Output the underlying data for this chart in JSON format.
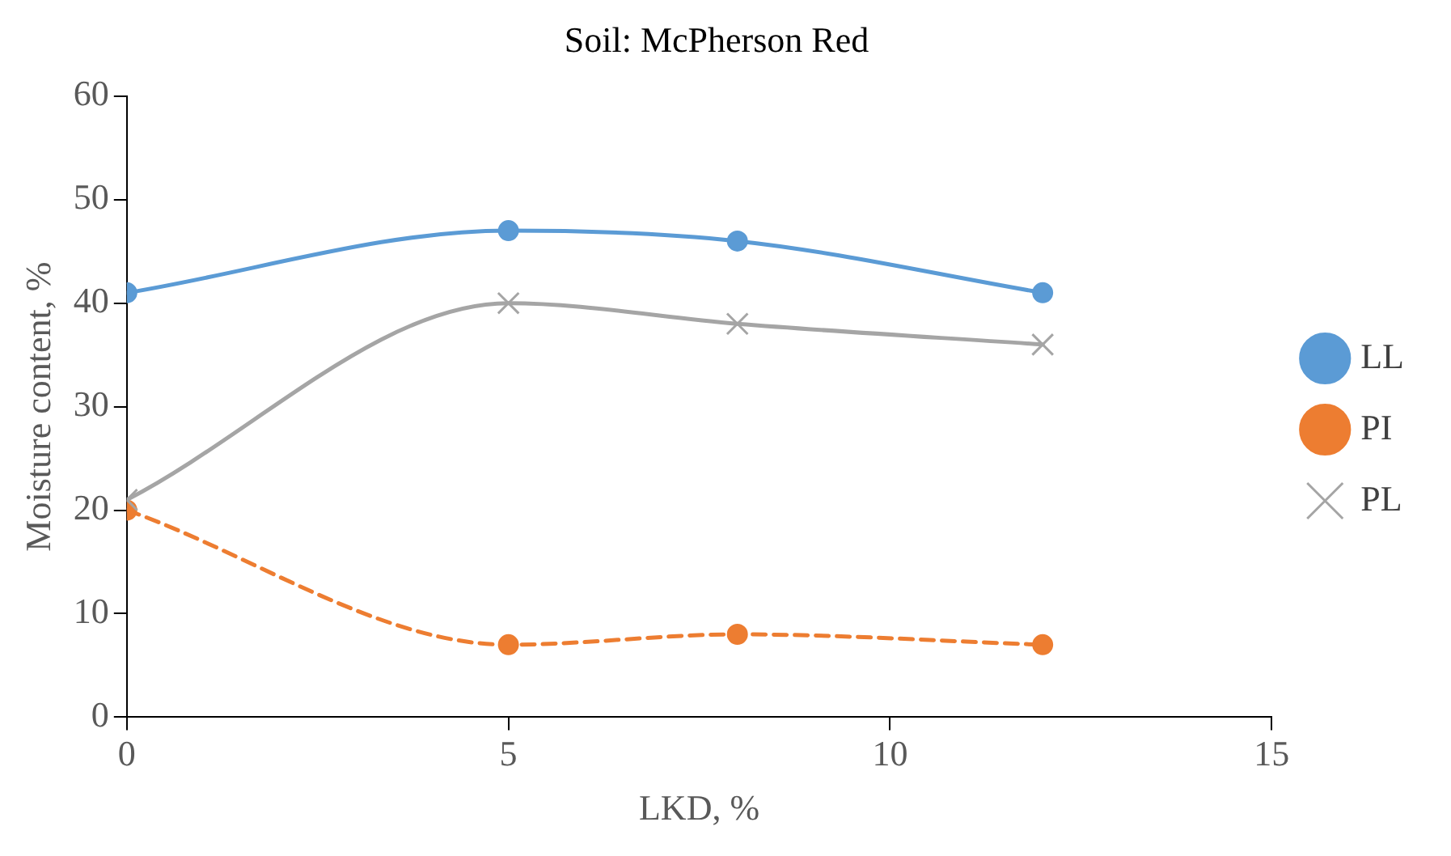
{
  "chart_data": {
    "type": "line",
    "title": "Soil: McPherson Red",
    "xlabel": "LKD, %",
    "ylabel": "Moisture content, %",
    "xlim": [
      0,
      15
    ],
    "xticks": [
      0,
      5,
      10,
      15
    ],
    "ylim": [
      0,
      60
    ],
    "yticks": [
      0,
      10,
      20,
      30,
      40,
      50,
      60
    ],
    "grid": false,
    "legend": "right",
    "series": [
      {
        "name": "LL",
        "color": "#5b9bd5",
        "x": [
          0,
          5,
          8,
          12
        ],
        "values": [
          41,
          47,
          46,
          41
        ],
        "marker": "circle",
        "line_style": "solid"
      },
      {
        "name": "PI",
        "color": "#ed7d31",
        "x": [
          0,
          5,
          8,
          12
        ],
        "values": [
          20,
          7,
          8,
          7
        ],
        "marker": "circle",
        "line_style": "dashed"
      },
      {
        "name": "PL",
        "color": "#a5a5a5",
        "x": [
          0,
          5,
          8,
          12
        ],
        "values": [
          21,
          40,
          38,
          36
        ],
        "marker": "cross",
        "line_style": "solid"
      }
    ]
  }
}
